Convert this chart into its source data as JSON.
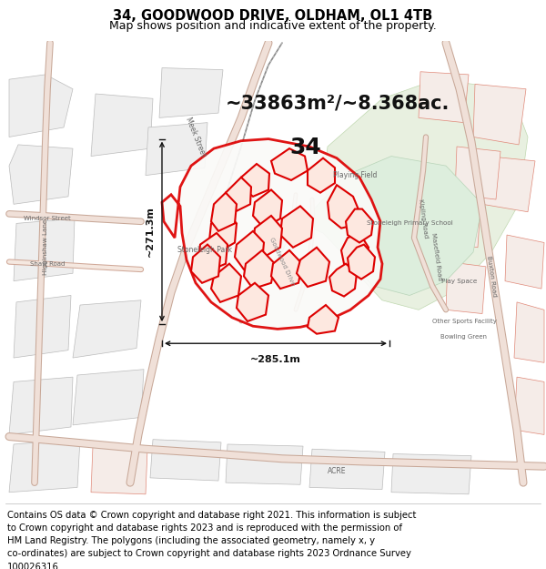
{
  "title": "34, GOODWOOD DRIVE, OLDHAM, OL1 4TB",
  "subtitle": "Map shows position and indicative extent of the property.",
  "footer_lines": [
    "Contains OS data © Crown copyright and database right 2021. This information is subject to Crown copyright and database rights 2023 and is reproduced with the permission of",
    "HM Land Registry. The polygons (including the associated geometry, namely x, y co-ordinates) are subject to Crown copyright and database rights 2023 Ordnance Survey",
    "100026316."
  ],
  "area_text": "~33863m²/~8.368ac.",
  "label_34": "34",
  "dim_left": "~271.3m",
  "dim_bottom": "~285.1m",
  "map_bg": "#f7f4f0",
  "block_fill": "#f5ece8",
  "block_edge": "#e08878",
  "green_fill": "#ddeedd",
  "green_edge": "#aaccaa",
  "road_color": "#e8bdb0",
  "road_edge": "#d09080",
  "property_edge": "#dd0000",
  "property_lw": 2.0,
  "subparcel_edge": "#dd0000",
  "subparcel_lw": 1.5,
  "dim_line_color": "#111111",
  "text_color": "#444444",
  "label_color": "#111111",
  "title_fontsize": 10.5,
  "subtitle_fontsize": 9,
  "footer_fontsize": 7.2
}
